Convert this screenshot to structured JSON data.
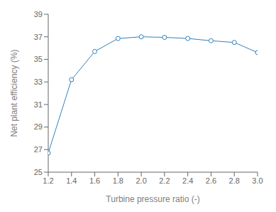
{
  "chart_data": {
    "type": "line",
    "xlabel": "Turbine pressure ratio (-)",
    "ylabel": "Net plant efficiency (%)",
    "x": [
      1.2,
      1.4,
      1.6,
      1.8,
      2.0,
      2.2,
      2.4,
      2.6,
      2.8,
      3.0
    ],
    "values": [
      26.7,
      33.2,
      35.7,
      36.85,
      37.0,
      36.95,
      36.85,
      36.65,
      36.5,
      35.6
    ],
    "xlim": [
      1.2,
      3.0
    ],
    "ylim": [
      25,
      39
    ],
    "xticks": [
      1.2,
      1.4,
      1.6,
      1.8,
      {
        "value": 2.0,
        "label": "2.0"
      },
      2.2,
      2.4,
      2.6,
      2.8,
      {
        "value": 3.0,
        "label": "3.0"
      }
    ],
    "yticks": [
      25,
      27,
      29,
      31,
      33,
      35,
      37,
      39
    ],
    "marker": "circle",
    "grid": false
  }
}
